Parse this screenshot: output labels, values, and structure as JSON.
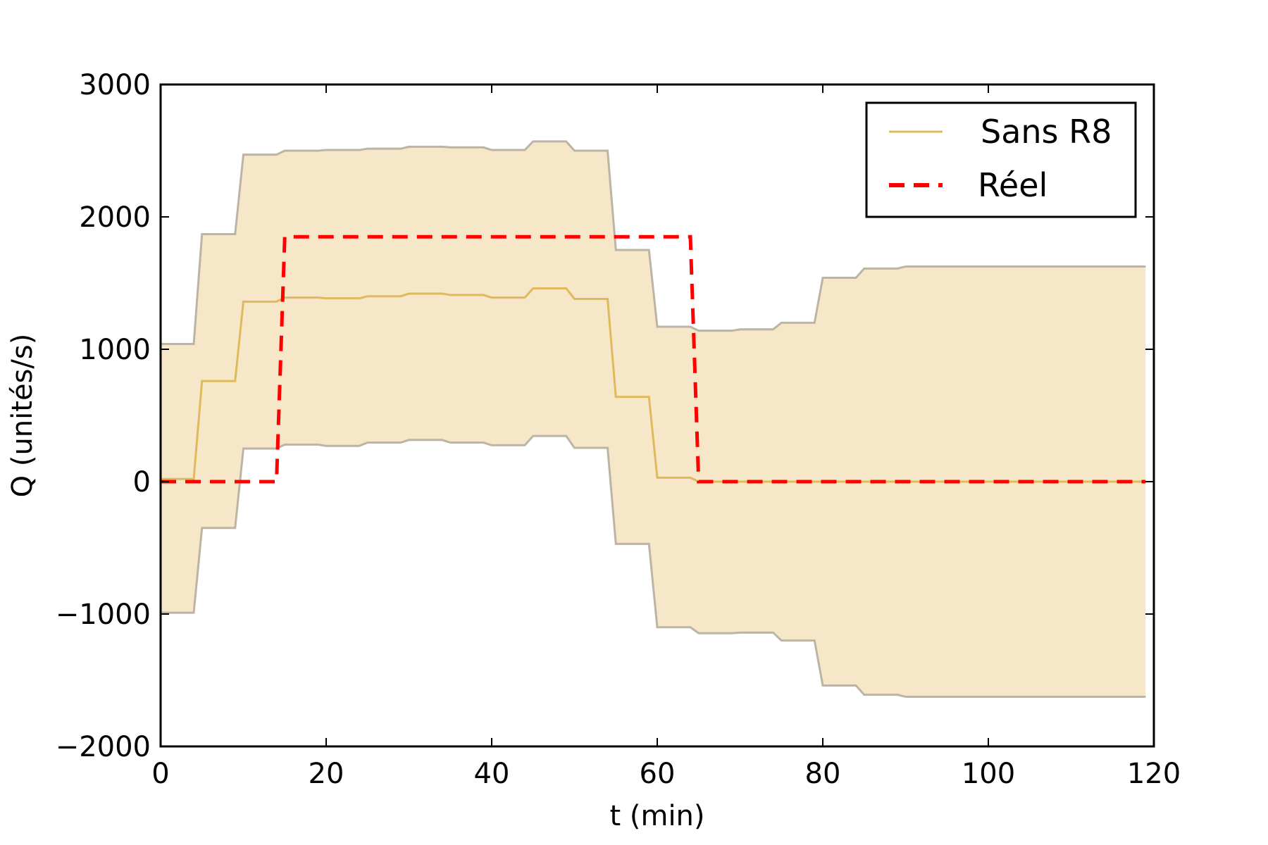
{
  "chart_data": {
    "type": "line",
    "xlabel": "t (min)",
    "ylabel": "Q (unités/s)",
    "xlim": [
      0,
      120
    ],
    "ylim": [
      -2000,
      3000
    ],
    "xticks": [
      0,
      20,
      40,
      60,
      80,
      100,
      120
    ],
    "yticks": [
      -2000,
      -1000,
      0,
      1000,
      2000,
      3000
    ],
    "xtick_labels": [
      "0",
      "20",
      "40",
      "60",
      "80",
      "100",
      "120"
    ],
    "ytick_labels": [
      "−2000",
      "−1000",
      "0",
      "1000",
      "2000",
      "3000"
    ],
    "grid": false,
    "legend_position": "top-right",
    "series": [
      {
        "name": "Sans R8",
        "style": "solid",
        "color": "#e0b95a",
        "band_color": "#f5e7c7",
        "band_edge_color": "#bcb4a4",
        "x": [
          0,
          4,
          5,
          9,
          10,
          14,
          15,
          19,
          20,
          24,
          25,
          29,
          30,
          34,
          35,
          39,
          40,
          44,
          45,
          49,
          50,
          54,
          55,
          59,
          60,
          64,
          65,
          69,
          70,
          74,
          75,
          79,
          80,
          84,
          85,
          89,
          90,
          119
        ],
        "values": [
          20,
          20,
          760,
          760,
          1360,
          1360,
          1390,
          1390,
          1385,
          1385,
          1400,
          1400,
          1420,
          1420,
          1410,
          1410,
          1390,
          1390,
          1460,
          1460,
          1380,
          1380,
          640,
          640,
          30,
          30,
          0,
          0,
          0,
          0,
          0,
          0,
          0,
          0,
          0,
          0,
          0,
          0
        ],
        "upper": [
          1040,
          1040,
          1870,
          1870,
          2470,
          2470,
          2500,
          2500,
          2505,
          2505,
          2515,
          2515,
          2530,
          2530,
          2525,
          2525,
          2505,
          2505,
          2570,
          2570,
          2500,
          2500,
          1750,
          1750,
          1170,
          1170,
          1140,
          1140,
          1150,
          1150,
          1200,
          1200,
          1540,
          1540,
          1610,
          1610,
          1625,
          1625
        ],
        "lower": [
          -990,
          -990,
          -350,
          -350,
          250,
          250,
          280,
          280,
          270,
          270,
          295,
          295,
          315,
          315,
          295,
          295,
          275,
          275,
          345,
          345,
          255,
          255,
          -470,
          -470,
          -1100,
          -1100,
          -1145,
          -1145,
          -1140,
          -1140,
          -1200,
          -1200,
          -1540,
          -1540,
          -1610,
          -1610,
          -1625,
          -1625
        ]
      },
      {
        "name": "Réel",
        "style": "dashed",
        "color": "#ff0000",
        "x": [
          0,
          14,
          15,
          64,
          65,
          119
        ],
        "values": [
          0,
          0,
          1850,
          1850,
          0,
          0
        ]
      }
    ]
  }
}
